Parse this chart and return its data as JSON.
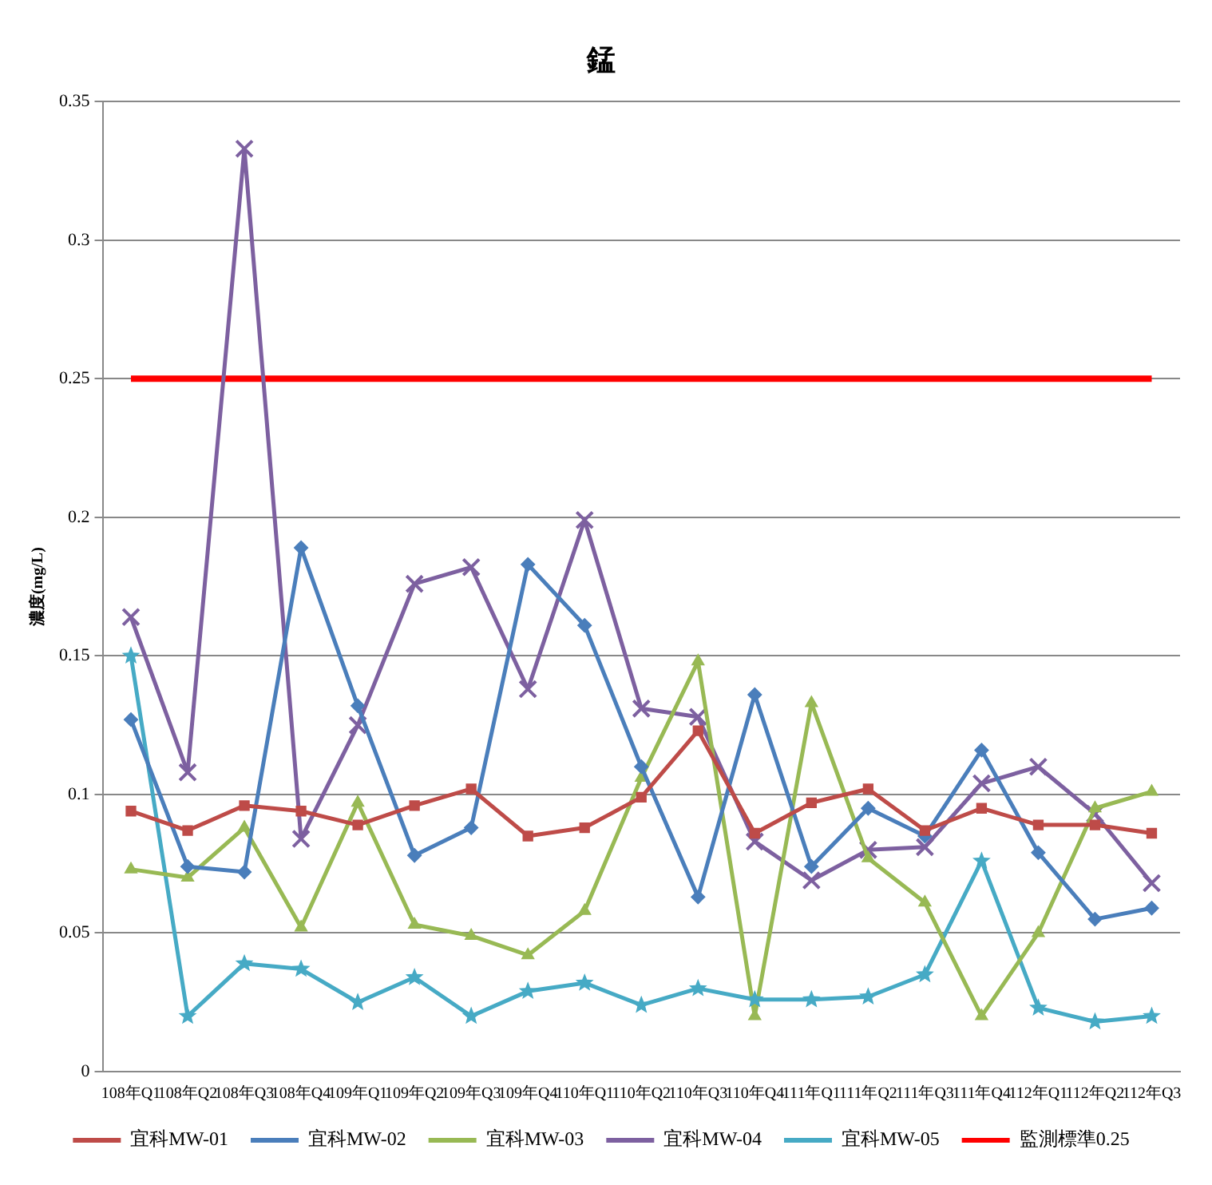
{
  "chart_data": {
    "type": "line",
    "title": "錳",
    "ylabel": "濃度(mg/L)",
    "categories": [
      "108年Q1",
      "108年Q2",
      "108年Q3",
      "108年Q4",
      "109年Q1",
      "109年Q2",
      "109年Q3",
      "109年Q4",
      "110年Q1",
      "110年Q2",
      "110年Q3",
      "110年Q4",
      "111年Q1",
      "111年Q2",
      "111年Q3",
      "111年Q4",
      "112年Q1",
      "112年Q2",
      "112年Q3"
    ],
    "series": [
      {
        "name": "宜科MW-01",
        "color": "#be4b48",
        "marker": "square",
        "values": [
          0.094,
          0.087,
          0.096,
          0.094,
          0.089,
          0.096,
          0.102,
          0.085,
          0.088,
          0.099,
          0.123,
          0.086,
          0.097,
          0.102,
          0.087,
          0.095,
          0.089,
          0.089,
          0.086
        ]
      },
      {
        "name": "宜科MW-02",
        "color": "#4a7ebb",
        "marker": "diamond",
        "values": [
          0.127,
          0.074,
          0.072,
          0.189,
          0.132,
          0.078,
          0.088,
          0.183,
          0.161,
          0.11,
          0.063,
          0.136,
          0.074,
          0.095,
          0.085,
          0.116,
          0.079,
          0.055,
          0.059
        ]
      },
      {
        "name": "宜科MW-03",
        "color": "#98b954",
        "marker": "triangle",
        "values": [
          0.073,
          0.07,
          0.088,
          0.052,
          0.097,
          0.053,
          0.049,
          0.042,
          0.058,
          0.106,
          0.148,
          0.02,
          0.133,
          0.077,
          0.061,
          0.02,
          0.05,
          0.095,
          0.101
        ]
      },
      {
        "name": "宜科MW-04",
        "color": "#7d60a0",
        "marker": "cross",
        "values": [
          0.164,
          0.108,
          0.333,
          0.084,
          0.125,
          0.176,
          0.182,
          0.138,
          0.199,
          0.131,
          0.128,
          0.083,
          0.069,
          0.08,
          0.081,
          0.104,
          0.11,
          0.093,
          0.068
        ]
      },
      {
        "name": "宜科MW-05",
        "color": "#46aac5",
        "marker": "star",
        "values": [
          0.15,
          0.02,
          0.039,
          0.037,
          0.025,
          0.034,
          0.02,
          0.029,
          0.032,
          0.024,
          0.03,
          0.026,
          0.026,
          0.027,
          0.035,
          0.076,
          0.023,
          0.018,
          0.02
        ]
      },
      {
        "name": "監測標準0.25",
        "color": "#ff0000",
        "marker": "none",
        "values": [
          0.25,
          0.25,
          0.25,
          0.25,
          0.25,
          0.25,
          0.25,
          0.25,
          0.25,
          0.25,
          0.25,
          0.25,
          0.25,
          0.25,
          0.25,
          0.25,
          0.25,
          0.25,
          0.25
        ]
      }
    ],
    "ylim": [
      0,
      0.35
    ],
    "yticks": [
      0,
      0.05,
      0.1,
      0.15,
      0.2,
      0.25,
      0.3,
      0.35
    ],
    "grid": "y",
    "legend": "bottom"
  }
}
